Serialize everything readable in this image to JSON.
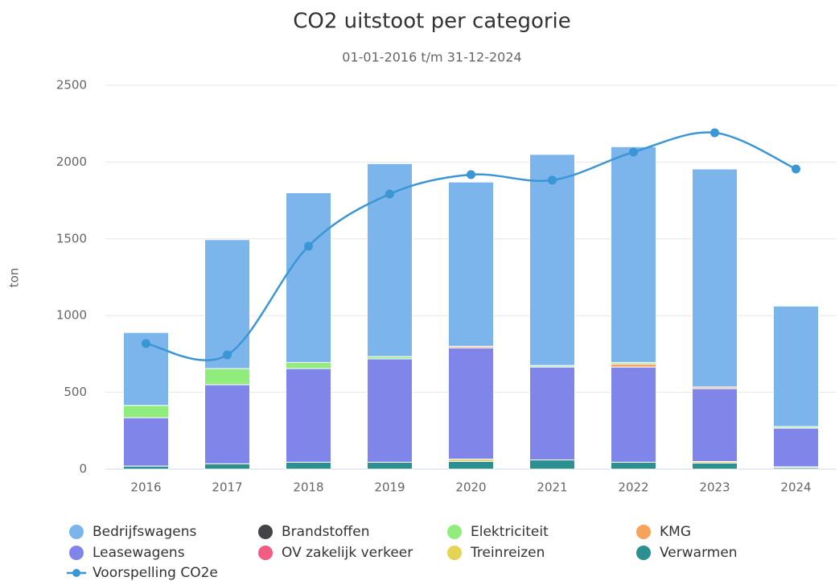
{
  "chart_data": {
    "type": "bar",
    "stacked": true,
    "title": "CO2 uitstoot per categorie",
    "subtitle": "01-01-2016 t/m 31-12-2024",
    "y_label": "ton",
    "categories": [
      "2016",
      "2017",
      "2018",
      "2019",
      "2020",
      "2021",
      "2022",
      "2023",
      "2024"
    ],
    "ylim": [
      0,
      2500
    ],
    "yticks": [
      0,
      500,
      1000,
      1500,
      2000,
      2500
    ],
    "grid": true,
    "series": [
      {
        "name": "Bedrijfswagens",
        "color": "#7cb5ec",
        "values": [
          475,
          840,
          1105,
          1257,
          1070,
          1375,
          1405,
          1420,
          785
        ]
      },
      {
        "name": "Brandstoffen",
        "color": "#434348",
        "values": [
          0,
          0,
          0,
          0,
          0,
          0,
          0,
          0,
          0
        ]
      },
      {
        "name": "Elektriciteit",
        "color": "#90ed7d",
        "values": [
          80,
          105,
          40,
          15,
          0,
          10,
          10,
          0,
          10
        ]
      },
      {
        "name": "KMG",
        "color": "#f7a35c",
        "values": [
          0,
          0,
          0,
          0,
          10,
          0,
          20,
          10,
          0
        ]
      },
      {
        "name": "Leasewagens",
        "color": "#8085e9",
        "values": [
          315,
          515,
          610,
          673,
          725,
          605,
          620,
          475,
          252
        ]
      },
      {
        "name": "OV zakelijk verkeer",
        "color": "#f15c80",
        "values": [
          0,
          0,
          0,
          0,
          0,
          0,
          0,
          0,
          0
        ]
      },
      {
        "name": "Treinreizen",
        "color": "#e4d354",
        "values": [
          0,
          0,
          0,
          0,
          15,
          0,
          0,
          10,
          5
        ]
      },
      {
        "name": "Verwarmen",
        "color": "#2b908f",
        "values": [
          20,
          35,
          45,
          45,
          50,
          60,
          45,
          40,
          10
        ]
      },
      {
        "name": "Voorspelling CO2e",
        "color": "#3a96d4",
        "type": "line",
        "values": [
          818,
          744,
          1452,
          1792,
          1918,
          1882,
          2065,
          2191,
          1955
        ]
      }
    ]
  }
}
